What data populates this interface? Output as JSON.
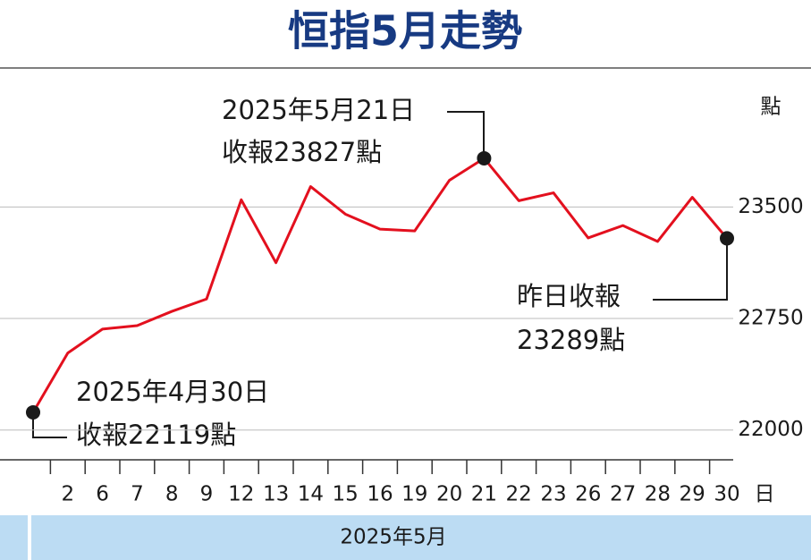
{
  "chart_data": {
    "type": "line",
    "title": "恒指5月走勢",
    "y_unit": "點",
    "x_unit": "日",
    "x_group_label": "2025年5月",
    "categories": [
      null,
      "2",
      "6",
      "7",
      "8",
      "9",
      "12",
      "13",
      "14",
      "15",
      "16",
      "19",
      "20",
      "21",
      "22",
      "23",
      "26",
      "27",
      "28",
      "29",
      "30"
    ],
    "values": [
      22119,
      22518,
      22679,
      22702,
      22798,
      22881,
      23548,
      23125,
      23637,
      23452,
      23351,
      23339,
      23679,
      23827,
      23542,
      23595,
      23292,
      23375,
      23268,
      23565,
      23289
    ],
    "color": "#e3101e",
    "marker_color": "#1a1a1a",
    "ylim": [
      21800,
      24350
    ],
    "yticks": [
      22000,
      22750,
      23500
    ],
    "grid": true,
    "annotations": [
      {
        "lines": [
          "2025年5月21日",
          "收報23827點"
        ]
      },
      {
        "lines": [
          "昨日收報",
          "23289點"
        ]
      },
      {
        "lines": [
          "2025年4月30日",
          "收報22119點"
        ]
      }
    ]
  }
}
